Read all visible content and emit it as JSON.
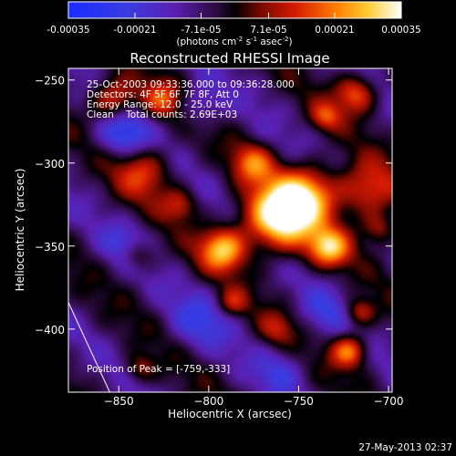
{
  "chart_data": {
    "type": "heatmap",
    "title": "Reconstructed RHESSI Image",
    "colorbar": {
      "range": [
        -0.00035,
        0.00035
      ],
      "tick_labels": [
        "-0.00035",
        "-0.00021",
        "-7.1e-05",
        "7.1e-05",
        "0.00021",
        "0.00035"
      ],
      "tick_values": [
        -0.00035,
        -0.00021,
        -7.1e-05,
        7.1e-05,
        0.00021,
        0.00035
      ],
      "unit_main": "(photons cm",
      "unit_exp1": "-2",
      "unit_mid": " s",
      "unit_exp2": "-1",
      "unit_end": " asec",
      "unit_exp3": "-2",
      "unit_close": ")"
    },
    "xlabel": "Heliocentric X (arcsec)",
    "ylabel": "Heliocentric Y (arcsec)",
    "xlim": [
      -878,
      -698
    ],
    "ylim": [
      -438,
      -243
    ],
    "x_ticks": [
      -850,
      -800,
      -750,
      -700
    ],
    "y_ticks": [
      -250,
      -300,
      -350,
      -400
    ],
    "annotations": [
      "25-Oct-2003 09:33:36.000 to 09:36:28.000",
      "Detectors: 4F 5F 6F 7F 8F, Att 0",
      "Energy Range: 12.0 - 25.0 keV",
      "Clean    Total counts: 2.69E+03"
    ],
    "peak_label": "Position of Peak = [-759,-333]",
    "peak": {
      "x": -759,
      "y": -333
    },
    "sources": [
      {
        "x": -761,
        "y": -333,
        "sigma": 14,
        "amp": 1.25
      },
      {
        "x": -745,
        "y": -318,
        "sigma": 12,
        "amp": 0.8
      },
      {
        "x": -792,
        "y": -352,
        "sigma": 9,
        "amp": 0.9
      },
      {
        "x": -733,
        "y": -351,
        "sigma": 8,
        "amp": 0.85
      },
      {
        "x": -712,
        "y": -317,
        "sigma": 12,
        "amp": 0.65
      },
      {
        "x": -775,
        "y": -300,
        "sigma": 8,
        "amp": 0.6
      },
      {
        "x": -836,
        "y": -305,
        "sigma": 11,
        "amp": 0.55
      },
      {
        "x": -853,
        "y": -262,
        "sigma": 9,
        "amp": 0.7
      },
      {
        "x": -826,
        "y": -262,
        "sigma": 8,
        "amp": 0.55
      },
      {
        "x": -718,
        "y": -258,
        "sigma": 8,
        "amp": 0.7
      },
      {
        "x": -735,
        "y": -272,
        "sigma": 6,
        "amp": 0.5
      },
      {
        "x": -722,
        "y": -413,
        "sigma": 7,
        "amp": 0.8
      },
      {
        "x": -716,
        "y": -390,
        "sigma": 6,
        "amp": 0.55
      },
      {
        "x": -787,
        "y": -384,
        "sigma": 6,
        "amp": 0.45
      },
      {
        "x": -840,
        "y": -355,
        "sigma": 7,
        "amp": 0.5
      },
      {
        "x": -705,
        "y": -340,
        "sigma": 7,
        "amp": 0.45
      },
      {
        "x": -816,
        "y": -325,
        "sigma": 7,
        "amp": 0.45
      },
      {
        "x": -762,
        "y": -400,
        "sigma": 7,
        "amp": 0.35
      },
      {
        "x": -838,
        "y": -424,
        "sigma": 6,
        "amp": 0.4
      },
      {
        "x": -848,
        "y": -282,
        "sigma": 10,
        "amp": -0.55
      },
      {
        "x": -805,
        "y": -265,
        "sigma": 9,
        "amp": -0.35
      },
      {
        "x": -845,
        "y": -350,
        "sigma": 9,
        "amp": -0.4
      },
      {
        "x": -805,
        "y": -395,
        "sigma": 12,
        "amp": -0.35
      },
      {
        "x": -735,
        "y": -390,
        "sigma": 10,
        "amp": -0.3
      },
      {
        "x": -760,
        "y": -425,
        "sigma": 10,
        "amp": -0.3
      }
    ],
    "limb_line": {
      "x": [
        -878,
        -855
      ],
      "y": [
        -384,
        -438
      ]
    },
    "grid": false
  },
  "footer": {
    "timestamp": "27-May-2013 02:37"
  }
}
